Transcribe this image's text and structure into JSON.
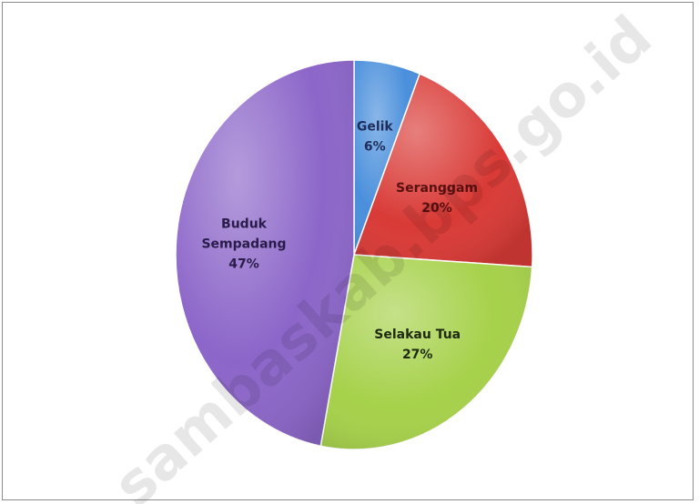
{
  "chart_data": {
    "type": "pie",
    "title": "",
    "categories": [
      "Gelik",
      "Seranggam",
      "Selakau Tua",
      "Buduk Sempadang"
    ],
    "values": [
      6,
      20,
      27,
      47
    ],
    "labels": [
      {
        "lines": [
          "Gelik",
          "6%"
        ]
      },
      {
        "lines": [
          "Seranggam",
          "20%"
        ]
      },
      {
        "lines": [
          "Selakau Tua",
          "27%"
        ]
      },
      {
        "lines": [
          "Buduk",
          "Sempadang",
          "47%"
        ]
      }
    ],
    "colors": [
      "#4a8fdc",
      "#d93a36",
      "#a6d14a",
      "#8c66c9"
    ],
    "legend": "none"
  },
  "watermark": {
    "text": "sambaskab.bps.go.id"
  }
}
